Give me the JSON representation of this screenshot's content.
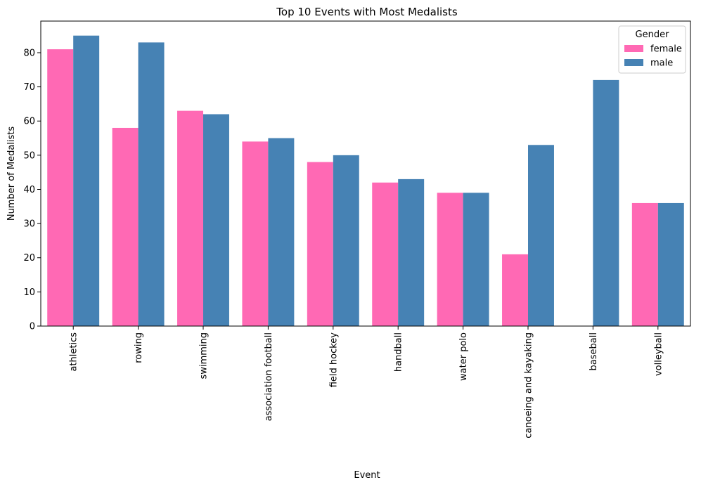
{
  "chart_data": {
    "type": "bar",
    "title": "Top 10 Events with Most Medalists",
    "xlabel": "Event",
    "ylabel": "Number of Medalists",
    "categories": [
      "athletics",
      "rowing",
      "swimming",
      "association football",
      "field hockey",
      "handball",
      "water polo",
      "canoeing and kayaking",
      "baseball",
      "volleyball"
    ],
    "series": [
      {
        "name": "female",
        "color": "#ff69b4",
        "values": [
          81,
          58,
          63,
          54,
          48,
          42,
          39,
          21,
          0,
          36
        ]
      },
      {
        "name": "male",
        "color": "#4682b4",
        "values": [
          85,
          83,
          62,
          55,
          50,
          43,
          39,
          53,
          72,
          36
        ]
      }
    ],
    "ylim": [
      0,
      89.25
    ],
    "yticks": [
      0,
      10,
      20,
      30,
      40,
      50,
      60,
      70,
      80
    ],
    "grid": false,
    "legend": {
      "title": "Gender",
      "placement": "top-right"
    }
  }
}
